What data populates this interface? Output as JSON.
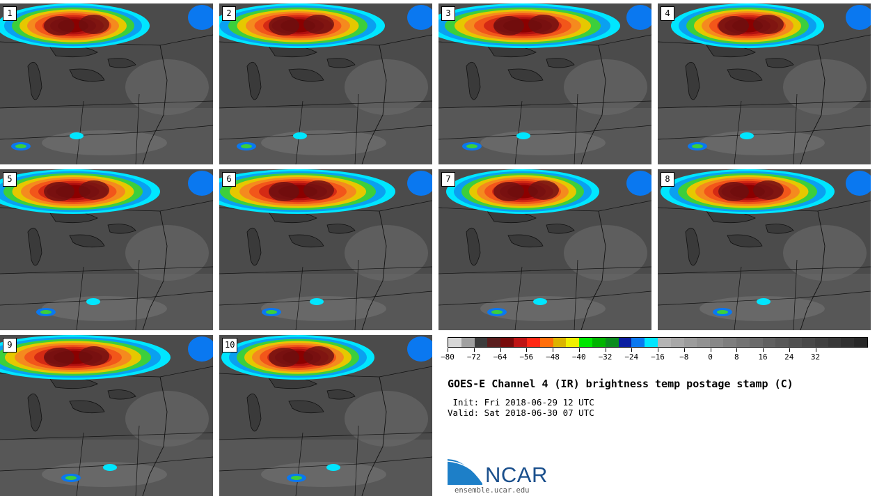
{
  "panels": [
    {
      "label": "1"
    },
    {
      "label": "2"
    },
    {
      "label": "3"
    },
    {
      "label": "4"
    },
    {
      "label": "5"
    },
    {
      "label": "6"
    },
    {
      "label": "7"
    },
    {
      "label": "8"
    },
    {
      "label": "9"
    },
    {
      "label": "10"
    }
  ],
  "colorbar": {
    "colors": [
      "#d7d7d7",
      "#a0a0a0",
      "#3c3c3c",
      "#5a1e1e",
      "#780a0a",
      "#be1414",
      "#ff2814",
      "#ff6e0a",
      "#dcb400",
      "#f0f000",
      "#00e600",
      "#00b400",
      "#0a8c1e",
      "#0a1ea0",
      "#0a78f0",
      "#00e6ff",
      "#b4b4b4",
      "#a8a8a8",
      "#9c9c9c",
      "#929292",
      "#888888",
      "#7e7e7e",
      "#747474",
      "#6a6a6a",
      "#606060",
      "#585858",
      "#505050",
      "#484848",
      "#404040",
      "#383838",
      "#303030",
      "#282828"
    ],
    "tick_labels": [
      "-80",
      "-72",
      "-64",
      "-56",
      "-48",
      "-40",
      "-32",
      "-24",
      "-16",
      "-8",
      "0",
      "8",
      "16",
      "24",
      "32"
    ]
  },
  "title": "GOES-E Channel 4 (IR) brightness temp postage stamp (C)",
  "init": " Init: Fri 2018-06-29 12 UTC",
  "valid": "Valid: Sat 2018-06-30 07 UTC",
  "logo_text": "NCAR",
  "footer": "ensemble.ucar.edu"
}
